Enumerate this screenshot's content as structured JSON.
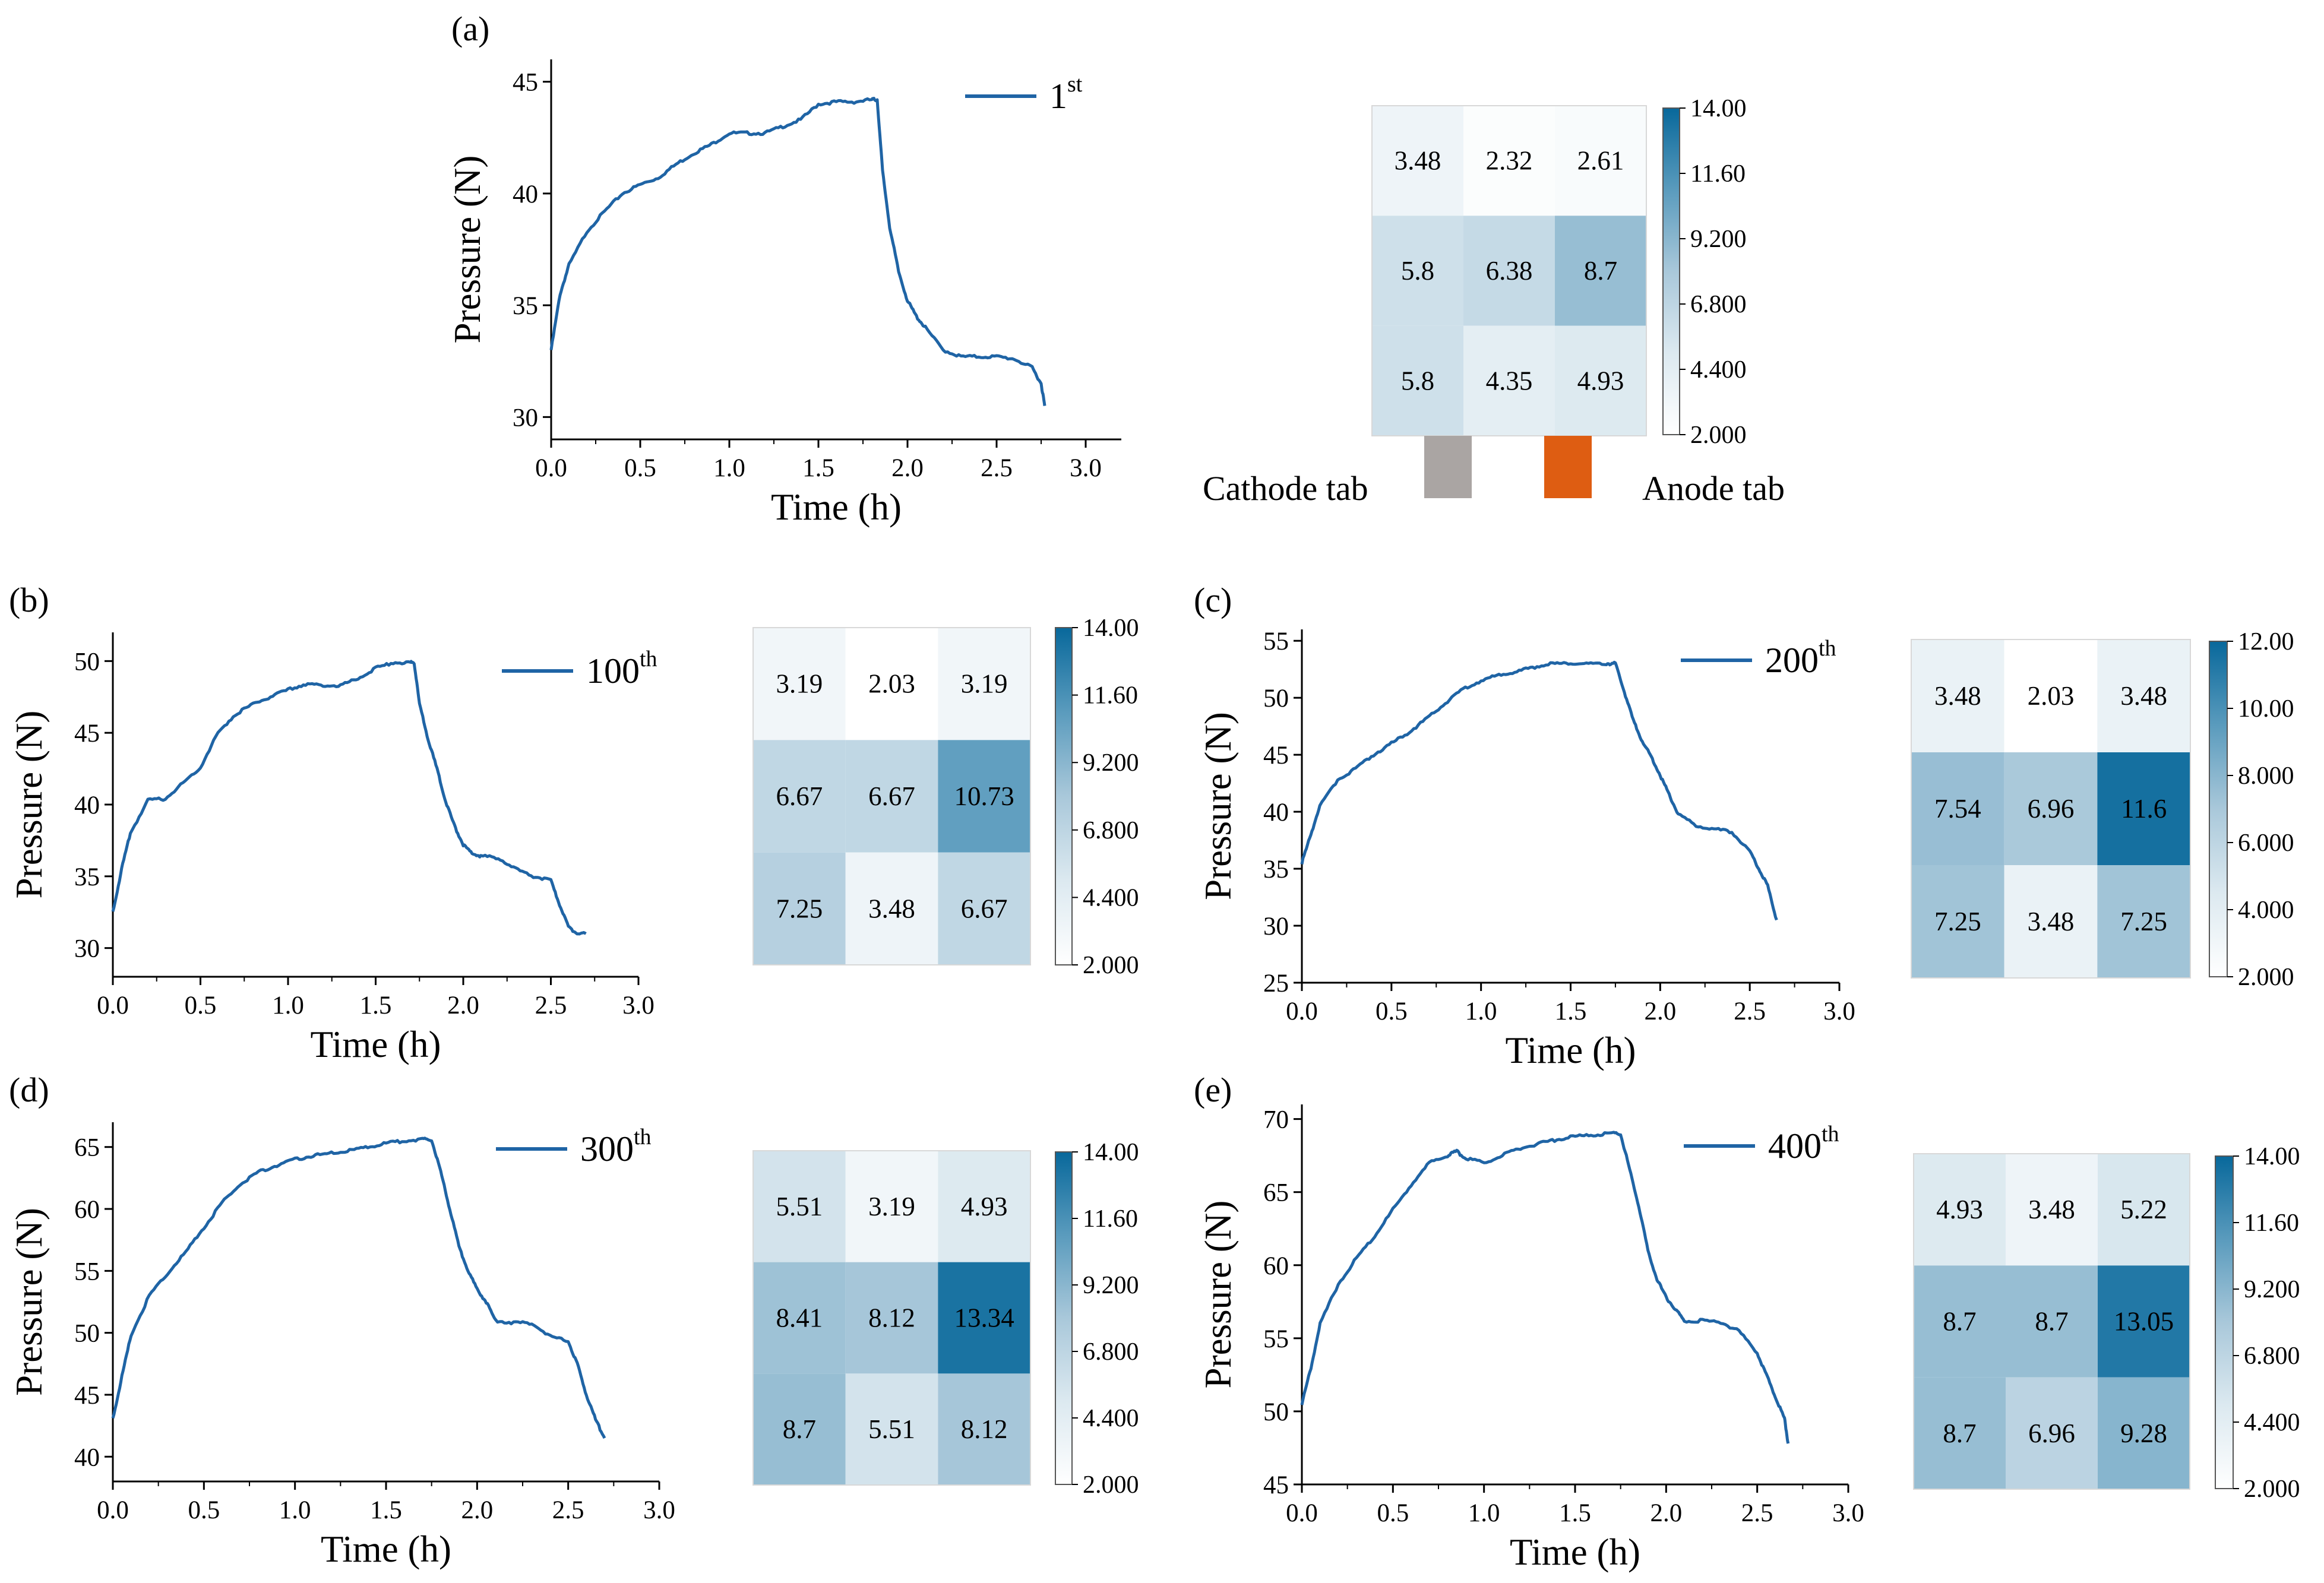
{
  "colors": {
    "line": "#1f64a5",
    "heat_low": "#ffffff",
    "heat_high": "#0a6a9c",
    "cathode_tab": "#aaa5a3",
    "anode_tab": "#de5d12"
  },
  "tabs": {
    "cathode": "Cathode tab",
    "anode": "Anode tab"
  },
  "chart_data": [
    {
      "type": "line",
      "panel": "(a)",
      "xlabel": "Time (h)",
      "ylabel": "Pressure (N)",
      "xlim": [
        0,
        3.2
      ],
      "ylim": [
        29,
        46
      ],
      "xticks": [
        "0.0",
        "0.5",
        "1.0",
        "1.5",
        "2.0",
        "2.5",
        "3.0"
      ],
      "yticks": [
        "30",
        "35",
        "40",
        "45"
      ],
      "legend": {
        "label": "1",
        "sup": "st"
      },
      "x": [
        0,
        0.05,
        0.1,
        0.2,
        0.3,
        0.4,
        0.5,
        0.6,
        0.7,
        0.8,
        0.9,
        1.0,
        1.1,
        1.2,
        1.3,
        1.4,
        1.5,
        1.6,
        1.7,
        1.8,
        1.83,
        1.86,
        1.9,
        1.95,
        2.0,
        2.05,
        2.1,
        2.2,
        2.3,
        2.4,
        2.5,
        2.6,
        2.7,
        2.75,
        2.77
      ],
      "y": [
        33,
        35.5,
        36.8,
        38.3,
        39.2,
        40,
        40.4,
        40.7,
        41.3,
        41.8,
        42.2,
        42.7,
        42.7,
        42.7,
        43,
        43.3,
        44,
        44.1,
        44.1,
        44.2,
        44.2,
        41,
        38.5,
        36.5,
        35.2,
        34.5,
        34,
        33,
        32.7,
        32.7,
        32.7,
        32.6,
        32.2,
        31.5,
        30.5
      ],
      "heatmap": {
        "values": [
          [
            3.48,
            2.32,
            2.61
          ],
          [
            5.8,
            6.38,
            8.7
          ],
          [
            5.8,
            4.35,
            4.93
          ]
        ],
        "cbar_ticks": [
          "14.00",
          "11.60",
          "9.200",
          "6.800",
          "4.400",
          "2.000"
        ],
        "vmin": 2,
        "vmax": 14
      }
    },
    {
      "type": "line",
      "panel": "(b)",
      "xlabel": "Time (h)",
      "ylabel": "Pressure (N)",
      "xlim": [
        0,
        3.0
      ],
      "ylim": [
        28,
        52
      ],
      "xticks": [
        "0.0",
        "0.5",
        "1.0",
        "1.5",
        "2.0",
        "2.5",
        "3.0"
      ],
      "yticks": [
        "30",
        "35",
        "40",
        "45",
        "50"
      ],
      "legend": {
        "label": "100",
        "sup": "th"
      },
      "x": [
        0,
        0.05,
        0.1,
        0.2,
        0.3,
        0.4,
        0.5,
        0.6,
        0.7,
        0.8,
        0.9,
        1.0,
        1.1,
        1.2,
        1.3,
        1.4,
        1.5,
        1.6,
        1.7,
        1.72,
        1.75,
        1.8,
        1.85,
        1.9,
        1.95,
        2.0,
        2.05,
        2.1,
        2.2,
        2.3,
        2.4,
        2.5,
        2.55,
        2.6,
        2.65,
        2.7
      ],
      "y": [
        32.5,
        35.5,
        38,
        40.3,
        40.4,
        41.5,
        42.6,
        45,
        46.3,
        47,
        47.5,
        48,
        48.4,
        48.3,
        48.3,
        48.8,
        49.5,
        49.9,
        49.9,
        49.9,
        47,
        44.5,
        42.5,
        40.2,
        38.5,
        37.2,
        36.6,
        36.4,
        36.3,
        35.5,
        35,
        34.7,
        33,
        31.5,
        31,
        31
      ],
      "heatmap": {
        "values": [
          [
            3.19,
            2.03,
            3.19
          ],
          [
            6.67,
            6.67,
            10.73
          ],
          [
            7.25,
            3.48,
            6.67
          ]
        ],
        "cbar_ticks": [
          "14.00",
          "11.60",
          "9.200",
          "6.800",
          "4.400",
          "2.000"
        ],
        "vmin": 2,
        "vmax": 14
      }
    },
    {
      "type": "line",
      "panel": "(c)",
      "xlabel": "Time (h)",
      "ylabel": "Pressure (N)",
      "xlim": [
        0,
        3.0
      ],
      "ylim": [
        25,
        56
      ],
      "xticks": [
        "0.0",
        "0.5",
        "1.0",
        "1.5",
        "2.0",
        "2.5",
        "3.0"
      ],
      "yticks": [
        "25",
        "30",
        "35",
        "40",
        "45",
        "50",
        "55"
      ],
      "legend": {
        "label": "200",
        "sup": "th"
      },
      "x": [
        0,
        0.05,
        0.1,
        0.2,
        0.3,
        0.4,
        0.5,
        0.6,
        0.7,
        0.8,
        0.9,
        1.0,
        1.1,
        1.2,
        1.3,
        1.4,
        1.5,
        1.6,
        1.7,
        1.75,
        1.8,
        1.85,
        1.9,
        1.95,
        2.0,
        2.05,
        2.1,
        2.2,
        2.3,
        2.4,
        2.5,
        2.55,
        2.6,
        2.65
      ],
      "y": [
        35.5,
        38,
        40.5,
        42.8,
        43.8,
        45,
        46,
        47,
        48.2,
        49.5,
        50.8,
        51.5,
        52,
        52.3,
        52.7,
        53,
        53,
        53,
        53,
        53,
        50.5,
        48,
        46.2,
        44.8,
        43.2,
        41.5,
        39.8,
        38.8,
        38.5,
        38.2,
        36.5,
        35,
        33.5,
        30.5
      ],
      "heatmap": {
        "values": [
          [
            3.48,
            2.03,
            3.48
          ],
          [
            7.54,
            6.96,
            11.6
          ],
          [
            7.25,
            3.48,
            7.25
          ]
        ],
        "cbar_ticks": [
          "12.00",
          "10.00",
          "8.000",
          "6.000",
          "4.000",
          "2.000"
        ],
        "vmin": 2,
        "vmax": 12
      }
    },
    {
      "type": "line",
      "panel": "(d)",
      "xlabel": "Time (h)",
      "ylabel": "Pressure (N)",
      "xlim": [
        0,
        3.0
      ],
      "ylim": [
        38,
        67
      ],
      "xticks": [
        "0.0",
        "0.5",
        "1.0",
        "1.5",
        "2.0",
        "2.5",
        "3.0"
      ],
      "yticks": [
        "40",
        "45",
        "50",
        "55",
        "60",
        "65"
      ],
      "legend": {
        "label": "300",
        "sup": "th"
      },
      "x": [
        0,
        0.05,
        0.1,
        0.2,
        0.3,
        0.4,
        0.5,
        0.6,
        0.7,
        0.8,
        0.9,
        1.0,
        1.1,
        1.2,
        1.3,
        1.4,
        1.5,
        1.6,
        1.7,
        1.75,
        1.8,
        1.85,
        1.9,
        1.95,
        2.0,
        2.05,
        2.1,
        2.2,
        2.3,
        2.4,
        2.5,
        2.55,
        2.6,
        2.65,
        2.7
      ],
      "y": [
        43,
        46.5,
        49.8,
        53,
        54.8,
        56.5,
        58.5,
        60.5,
        62,
        63,
        63.5,
        64,
        64.3,
        64.5,
        64.7,
        65,
        65.3,
        65.5,
        65.6,
        65.6,
        63,
        60,
        57,
        55,
        53.5,
        52.5,
        51,
        50.8,
        50.8,
        49.7,
        49.3,
        47.5,
        45,
        43,
        41.5
      ],
      "heatmap": {
        "values": [
          [
            5.51,
            3.19,
            4.93
          ],
          [
            8.41,
            8.12,
            13.34
          ],
          [
            8.7,
            5.51,
            8.12
          ]
        ],
        "cbar_ticks": [
          "14.00",
          "11.60",
          "9.200",
          "6.800",
          "4.400",
          "2.000"
        ],
        "vmin": 2,
        "vmax": 14
      }
    },
    {
      "type": "line",
      "panel": "(e)",
      "xlabel": "Time (h)",
      "ylabel": "Pressure (N)",
      "xlim": [
        0,
        3.0
      ],
      "ylim": [
        45,
        71
      ],
      "xticks": [
        "0.0",
        "0.5",
        "1.0",
        "1.5",
        "2.0",
        "2.5",
        "3.0"
      ],
      "yticks": [
        "45",
        "50",
        "55",
        "60",
        "65",
        "70"
      ],
      "legend": {
        "label": "400",
        "sup": "th"
      },
      "x": [
        0,
        0.05,
        0.1,
        0.2,
        0.3,
        0.4,
        0.5,
        0.6,
        0.7,
        0.8,
        0.85,
        0.9,
        1.0,
        1.1,
        1.2,
        1.3,
        1.4,
        1.5,
        1.6,
        1.7,
        1.75,
        1.8,
        1.85,
        1.9,
        1.95,
        2.0,
        2.05,
        2.1,
        2.2,
        2.3,
        2.4,
        2.5,
        2.55,
        2.6,
        2.65,
        2.67
      ],
      "y": [
        50.5,
        53,
        56,
        58.7,
        60.5,
        62,
        63.8,
        65.5,
        67,
        67.5,
        67.8,
        67.3,
        67,
        67.5,
        68,
        68.3,
        68.6,
        68.8,
        68.9,
        69,
        69,
        66.5,
        64,
        61,
        59,
        57.8,
        57,
        56.2,
        56.2,
        56.1,
        55.5,
        54,
        52.5,
        51,
        49.5,
        47.8
      ],
      "heatmap": {
        "values": [
          [
            4.93,
            3.48,
            5.22
          ],
          [
            8.7,
            8.7,
            13.05
          ],
          [
            8.7,
            6.96,
            9.28
          ]
        ],
        "cbar_ticks": [
          "14.00",
          "11.60",
          "9.200",
          "6.800",
          "4.400",
          "2.000"
        ],
        "vmin": 2,
        "vmax": 14
      }
    }
  ]
}
